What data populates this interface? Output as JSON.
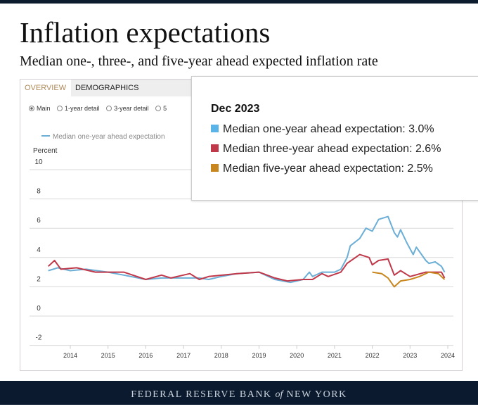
{
  "header": {
    "title": "Inflation expectations",
    "subtitle": "Median one-, three-, and five-year ahead expected inflation rate"
  },
  "tabs": [
    {
      "label": "OVERVIEW",
      "active": true
    },
    {
      "label": "DEMOGRAPHICS",
      "active": false
    }
  ],
  "radios": [
    {
      "label": "Main",
      "selected": true
    },
    {
      "label": "1-year detail",
      "selected": false
    },
    {
      "label": "3-year detail",
      "selected": false
    },
    {
      "label": "5",
      "selected": false
    }
  ],
  "legend": {
    "visible_label": "Median one-year ahead expectation"
  },
  "tooltip": {
    "date": "Dec 2023",
    "rows": [
      {
        "label": "Median one-year ahead expectation: 3.0%",
        "color": "#5bb4e8"
      },
      {
        "label": "Median three-year ahead expectation: 2.6%",
        "color": "#c0394a"
      },
      {
        "label": "Median five-year ahead expectation: 2.5%",
        "color": "#c8871e"
      }
    ]
  },
  "footer": {
    "pre": "FEDERAL RESERVE BANK ",
    "of": "of",
    "post": " NEW YORK"
  },
  "chart_data": {
    "type": "line",
    "title": "",
    "ylabel": "Percent",
    "xlabel": "",
    "ylim": [
      -2,
      10
    ],
    "yticks": [
      "10",
      "8",
      "6",
      "4",
      "2",
      "0",
      "-2"
    ],
    "xticks": [
      "2014",
      "2015",
      "2016",
      "2017",
      "2018",
      "2019",
      "2020",
      "2021",
      "2022",
      "2023",
      "2024"
    ],
    "grid": true,
    "series": [
      {
        "name": "Median one-year ahead expectation",
        "color": "#6baed6",
        "points": [
          [
            "2013-06",
            3.1
          ],
          [
            "2013-09",
            3.3
          ],
          [
            "2014-01",
            3.1
          ],
          [
            "2014-06",
            3.2
          ],
          [
            "2015-01",
            3.0
          ],
          [
            "2015-06",
            2.8
          ],
          [
            "2016-01",
            2.5
          ],
          [
            "2016-06",
            2.6
          ],
          [
            "2017-01",
            2.6
          ],
          [
            "2017-06",
            2.6
          ],
          [
            "2017-09",
            2.5
          ],
          [
            "2018-01",
            2.7
          ],
          [
            "2018-06",
            2.9
          ],
          [
            "2019-01",
            3.0
          ],
          [
            "2019-06",
            2.5
          ],
          [
            "2019-11",
            2.3
          ],
          [
            "2020-03",
            2.5
          ],
          [
            "2020-05",
            3.0
          ],
          [
            "2020-06",
            2.7
          ],
          [
            "2020-09",
            3.0
          ],
          [
            "2021-01",
            3.0
          ],
          [
            "2021-03",
            3.2
          ],
          [
            "2021-05",
            4.0
          ],
          [
            "2021-06",
            4.8
          ],
          [
            "2021-09",
            5.3
          ],
          [
            "2021-11",
            6.0
          ],
          [
            "2022-01",
            5.8
          ],
          [
            "2022-03",
            6.6
          ],
          [
            "2022-06",
            6.8
          ],
          [
            "2022-08",
            5.7
          ],
          [
            "2022-09",
            5.4
          ],
          [
            "2022-10",
            5.9
          ],
          [
            "2022-12",
            5.0
          ],
          [
            "2023-02",
            4.2
          ],
          [
            "2023-03",
            4.7
          ],
          [
            "2023-06",
            3.8
          ],
          [
            "2023-07",
            3.6
          ],
          [
            "2023-09",
            3.7
          ],
          [
            "2023-11",
            3.4
          ],
          [
            "2023-12",
            3.0
          ]
        ]
      },
      {
        "name": "Median three-year ahead expectation",
        "color": "#c0394a",
        "points": [
          [
            "2013-06",
            3.4
          ],
          [
            "2013-08",
            3.8
          ],
          [
            "2013-10",
            3.2
          ],
          [
            "2014-03",
            3.3
          ],
          [
            "2014-09",
            3.0
          ],
          [
            "2015-06",
            3.0
          ],
          [
            "2016-01",
            2.5
          ],
          [
            "2016-06",
            2.8
          ],
          [
            "2016-09",
            2.6
          ],
          [
            "2017-03",
            2.9
          ],
          [
            "2017-06",
            2.5
          ],
          [
            "2017-09",
            2.7
          ],
          [
            "2018-06",
            2.9
          ],
          [
            "2019-01",
            3.0
          ],
          [
            "2019-06",
            2.6
          ],
          [
            "2019-10",
            2.4
          ],
          [
            "2020-03",
            2.5
          ],
          [
            "2020-06",
            2.5
          ],
          [
            "2020-09",
            2.9
          ],
          [
            "2020-11",
            2.7
          ],
          [
            "2021-03",
            3.0
          ],
          [
            "2021-05",
            3.6
          ],
          [
            "2021-09",
            4.2
          ],
          [
            "2021-12",
            4.0
          ],
          [
            "2022-01",
            3.5
          ],
          [
            "2022-03",
            3.8
          ],
          [
            "2022-06",
            3.9
          ],
          [
            "2022-08",
            2.8
          ],
          [
            "2022-10",
            3.1
          ],
          [
            "2023-01",
            2.7
          ],
          [
            "2023-06",
            3.0
          ],
          [
            "2023-11",
            3.0
          ],
          [
            "2023-12",
            2.6
          ]
        ]
      },
      {
        "name": "Median five-year ahead expectation",
        "color": "#c8871e",
        "points": [
          [
            "2022-01",
            3.0
          ],
          [
            "2022-04",
            2.9
          ],
          [
            "2022-06",
            2.6
          ],
          [
            "2022-08",
            2.0
          ],
          [
            "2022-10",
            2.4
          ],
          [
            "2023-01",
            2.5
          ],
          [
            "2023-04",
            2.7
          ],
          [
            "2023-07",
            3.0
          ],
          [
            "2023-10",
            2.9
          ],
          [
            "2023-12",
            2.5
          ]
        ]
      }
    ]
  }
}
